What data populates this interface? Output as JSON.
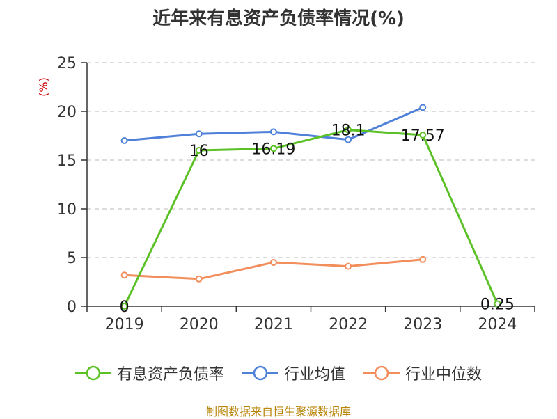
{
  "title": "近年来有息资产负债率情况(%)",
  "unit_label": "(%)",
  "source": "制图数据来自恒生聚源数据库",
  "chart_data": {
    "type": "line",
    "title": "近年来有息资产负债率情况(%)",
    "ylabel": "(%)",
    "xlabel": "",
    "categories": [
      "2019",
      "2020",
      "2021",
      "2022",
      "2023",
      "2024"
    ],
    "ylim": [
      0,
      25
    ],
    "yticks": [
      0,
      5,
      10,
      15,
      20,
      25
    ],
    "grid": true,
    "legend_position": "bottom",
    "series": [
      {
        "name": "有息资产负债率",
        "color": "#5cc027",
        "values": [
          0,
          16,
          16.19,
          18.1,
          17.57,
          0.25
        ],
        "labels": [
          "0",
          "16",
          "16.19",
          "18.1",
          "17.57",
          "0.25"
        ],
        "show_labels": true
      },
      {
        "name": "行业均值",
        "color": "#4f81d9",
        "values": [
          17.0,
          17.7,
          17.9,
          17.1,
          20.4,
          null
        ],
        "show_labels": false
      },
      {
        "name": "行业中位数",
        "color": "#f28e5b",
        "values": [
          3.2,
          2.8,
          4.5,
          4.1,
          4.8,
          null
        ],
        "show_labels": false
      }
    ]
  }
}
